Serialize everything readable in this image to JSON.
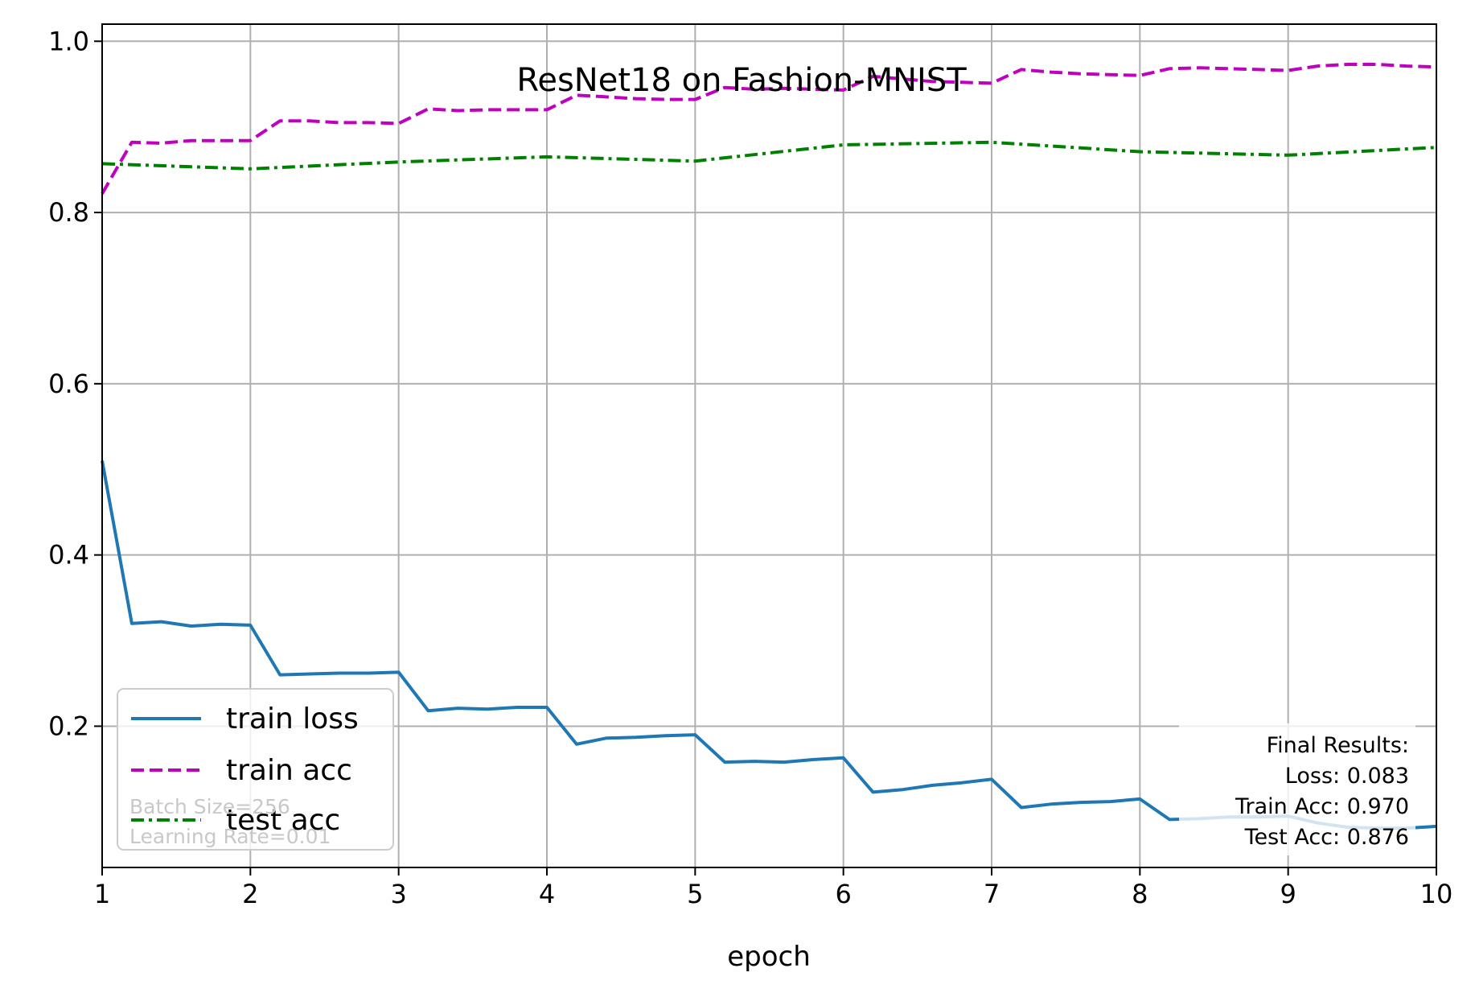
{
  "chart_data": {
    "type": "line",
    "title": "ResNet18 on Fashion-MNIST",
    "xlabel": "epoch",
    "ylabel": "",
    "xlim": [
      1,
      10
    ],
    "ylim": [
      0.035,
      1.02
    ],
    "xticks": [
      1,
      2,
      3,
      4,
      5,
      6,
      7,
      8,
      9,
      10
    ],
    "yticks": [
      0.2,
      0.4,
      0.6,
      0.8,
      1.0
    ],
    "ytick_labels": [
      "0.2",
      "0.4",
      "0.6",
      "0.8",
      "1.0"
    ],
    "grid": true,
    "legend_position": "lower-left",
    "series": [
      {
        "name": "train loss",
        "color": "#1f77b4",
        "style": "solid",
        "x": [
          1,
          1.2,
          1.4,
          1.6,
          1.8,
          2,
          2.2,
          2.4,
          2.6,
          2.8,
          3,
          3.2,
          3.4,
          3.6,
          3.8,
          4,
          4.2,
          4.4,
          4.6,
          4.8,
          5,
          5.2,
          5.4,
          5.6,
          5.8,
          6,
          6.2,
          6.4,
          6.6,
          6.8,
          7,
          7.2,
          7.4,
          7.6,
          7.8,
          8,
          8.2,
          8.4,
          8.6,
          8.8,
          9,
          9.2,
          9.4,
          9.6,
          9.8,
          10
        ],
        "y": [
          0.51,
          0.32,
          0.322,
          0.317,
          0.319,
          0.318,
          0.26,
          0.261,
          0.262,
          0.262,
          0.263,
          0.218,
          0.221,
          0.22,
          0.222,
          0.222,
          0.179,
          0.186,
          0.187,
          0.189,
          0.19,
          0.158,
          0.159,
          0.158,
          0.161,
          0.163,
          0.123,
          0.126,
          0.131,
          0.134,
          0.138,
          0.105,
          0.109,
          0.111,
          0.112,
          0.115,
          0.091,
          0.092,
          0.094,
          0.094,
          0.095,
          0.087,
          0.082,
          0.081,
          0.081,
          0.083
        ]
      },
      {
        "name": "train acc",
        "color": "#bf00bf",
        "style": "dashed",
        "x": [
          1,
          1.2,
          1.4,
          1.6,
          1.8,
          2,
          2.2,
          2.4,
          2.6,
          2.8,
          3,
          3.2,
          3.4,
          3.6,
          3.8,
          4,
          4.2,
          4.4,
          4.6,
          4.8,
          5,
          5.2,
          5.4,
          5.6,
          5.8,
          6,
          6.2,
          6.4,
          6.6,
          6.8,
          7,
          7.2,
          7.4,
          7.6,
          7.8,
          8,
          8.2,
          8.4,
          8.6,
          8.8,
          9,
          9.2,
          9.4,
          9.6,
          9.8,
          10
        ],
        "y": [
          0.822,
          0.882,
          0.881,
          0.884,
          0.884,
          0.884,
          0.907,
          0.907,
          0.905,
          0.905,
          0.904,
          0.921,
          0.919,
          0.92,
          0.92,
          0.92,
          0.937,
          0.935,
          0.933,
          0.932,
          0.932,
          0.946,
          0.944,
          0.945,
          0.944,
          0.943,
          0.959,
          0.956,
          0.953,
          0.952,
          0.951,
          0.967,
          0.964,
          0.962,
          0.961,
          0.96,
          0.968,
          0.969,
          0.968,
          0.967,
          0.966,
          0.971,
          0.973,
          0.973,
          0.971,
          0.97
        ]
      },
      {
        "name": "test acc",
        "color": "#008000",
        "style": "dashdot",
        "x": [
          1,
          2,
          3,
          4,
          5,
          6,
          7,
          8,
          9,
          10
        ],
        "y": [
          0.857,
          0.851,
          0.859,
          0.865,
          0.86,
          0.879,
          0.882,
          0.871,
          0.867,
          0.876
        ]
      }
    ],
    "annotations": {
      "note_lines": [
        "Batch Size=256",
        "Learning Rate=0.01"
      ],
      "final_lines": [
        "Final Results:",
        "Loss: 0.083",
        "Train Acc: 0.970",
        "Test Acc: 0.876"
      ]
    }
  }
}
